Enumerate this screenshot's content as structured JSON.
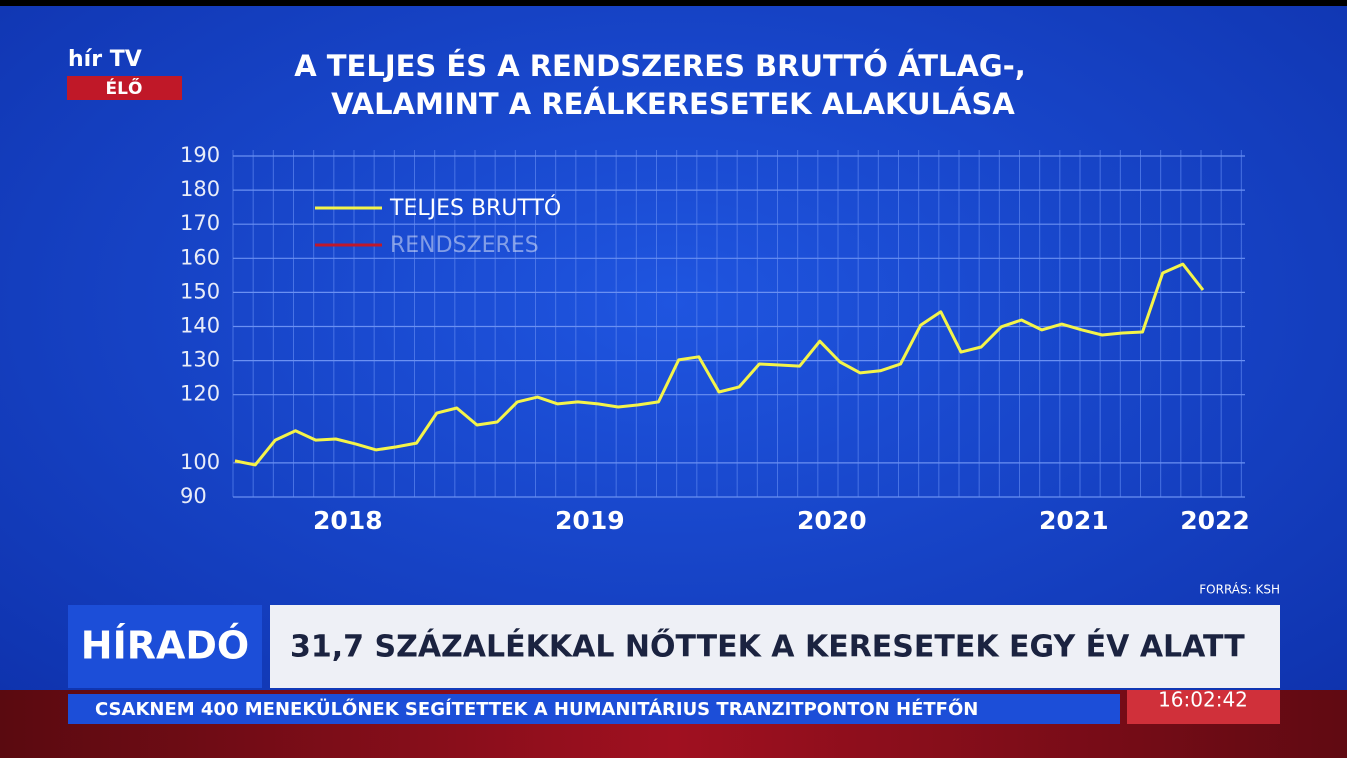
{
  "screen": {
    "logo": "hír TV",
    "live": "ÉLŐ",
    "source": "FORRÁS: KSH",
    "show": "HÍRADÓ",
    "headline": "31,7 SZÁZALÉKKAL NŐTTEK A KERESETEK EGY ÉV ALATT",
    "ticker": "CSAKNEM 400 MENEKÜLŐNEK SEGÍTETTEK A HUMANITÁRIUS TRANZITPONTON HÉTFŐN",
    "clock": "16:02:42"
  },
  "chart_data": {
    "type": "line",
    "title": [
      "A TELJES ÉS A RENDSZERES BRUTTÓ ÁTLAG-,",
      "VALAMINT A REÁLKERESETEK ALAKULÁSA"
    ],
    "categories": [
      null,
      null,
      null,
      null,
      null,
      "2018",
      null,
      null,
      null,
      null,
      null,
      null,
      null,
      null,
      null,
      null,
      null,
      "2019",
      null,
      null,
      null,
      null,
      null,
      null,
      null,
      null,
      null,
      null,
      null,
      "2020",
      null,
      null,
      null,
      null,
      null,
      null,
      null,
      null,
      null,
      null,
      null,
      "2021",
      null,
      null,
      null,
      null,
      null,
      null,
      "2022"
    ],
    "series": [
      {
        "name": "TELJES BRUTTÓ",
        "color": "#f4f44a",
        "values": [
          100.6,
          99.4,
          106.7,
          109.4,
          106.7,
          107,
          105.5,
          103.8,
          104.7,
          105.8,
          114.6,
          116.1,
          111.1,
          112,
          117.9,
          119.3,
          117.3,
          117.9,
          117.3,
          116.4,
          117,
          117.9,
          130.2,
          131.1,
          120.8,
          122.3,
          129,
          128.7,
          128.4,
          135.7,
          129.6,
          126.4,
          127,
          129,
          140.4,
          144.3,
          132.5,
          134,
          139.9,
          141.9,
          139,
          140.7,
          139,
          137.5,
          138.1,
          138.4,
          155.7,
          158.3,
          150.7
        ]
      },
      {
        "name": "RENDSZERES",
        "color": "#c0182a",
        "values": [
          100.6,
          99.4,
          null,
          null,
          null,
          null,
          null,
          null,
          null,
          null,
          null,
          null,
          null,
          null,
          null,
          null,
          null,
          null,
          null,
          null,
          null,
          null,
          null,
          null,
          null,
          null,
          null,
          null,
          null,
          null,
          null,
          null,
          null,
          null,
          null,
          null,
          null,
          null,
          null,
          null,
          null,
          null,
          null,
          null,
          null,
          null,
          null,
          null,
          null
        ]
      }
    ],
    "ylim": [
      90,
      190
    ],
    "yticks": [
      90,
      100,
      120,
      130,
      140,
      150,
      160,
      170,
      180,
      190
    ],
    "grid": true
  }
}
